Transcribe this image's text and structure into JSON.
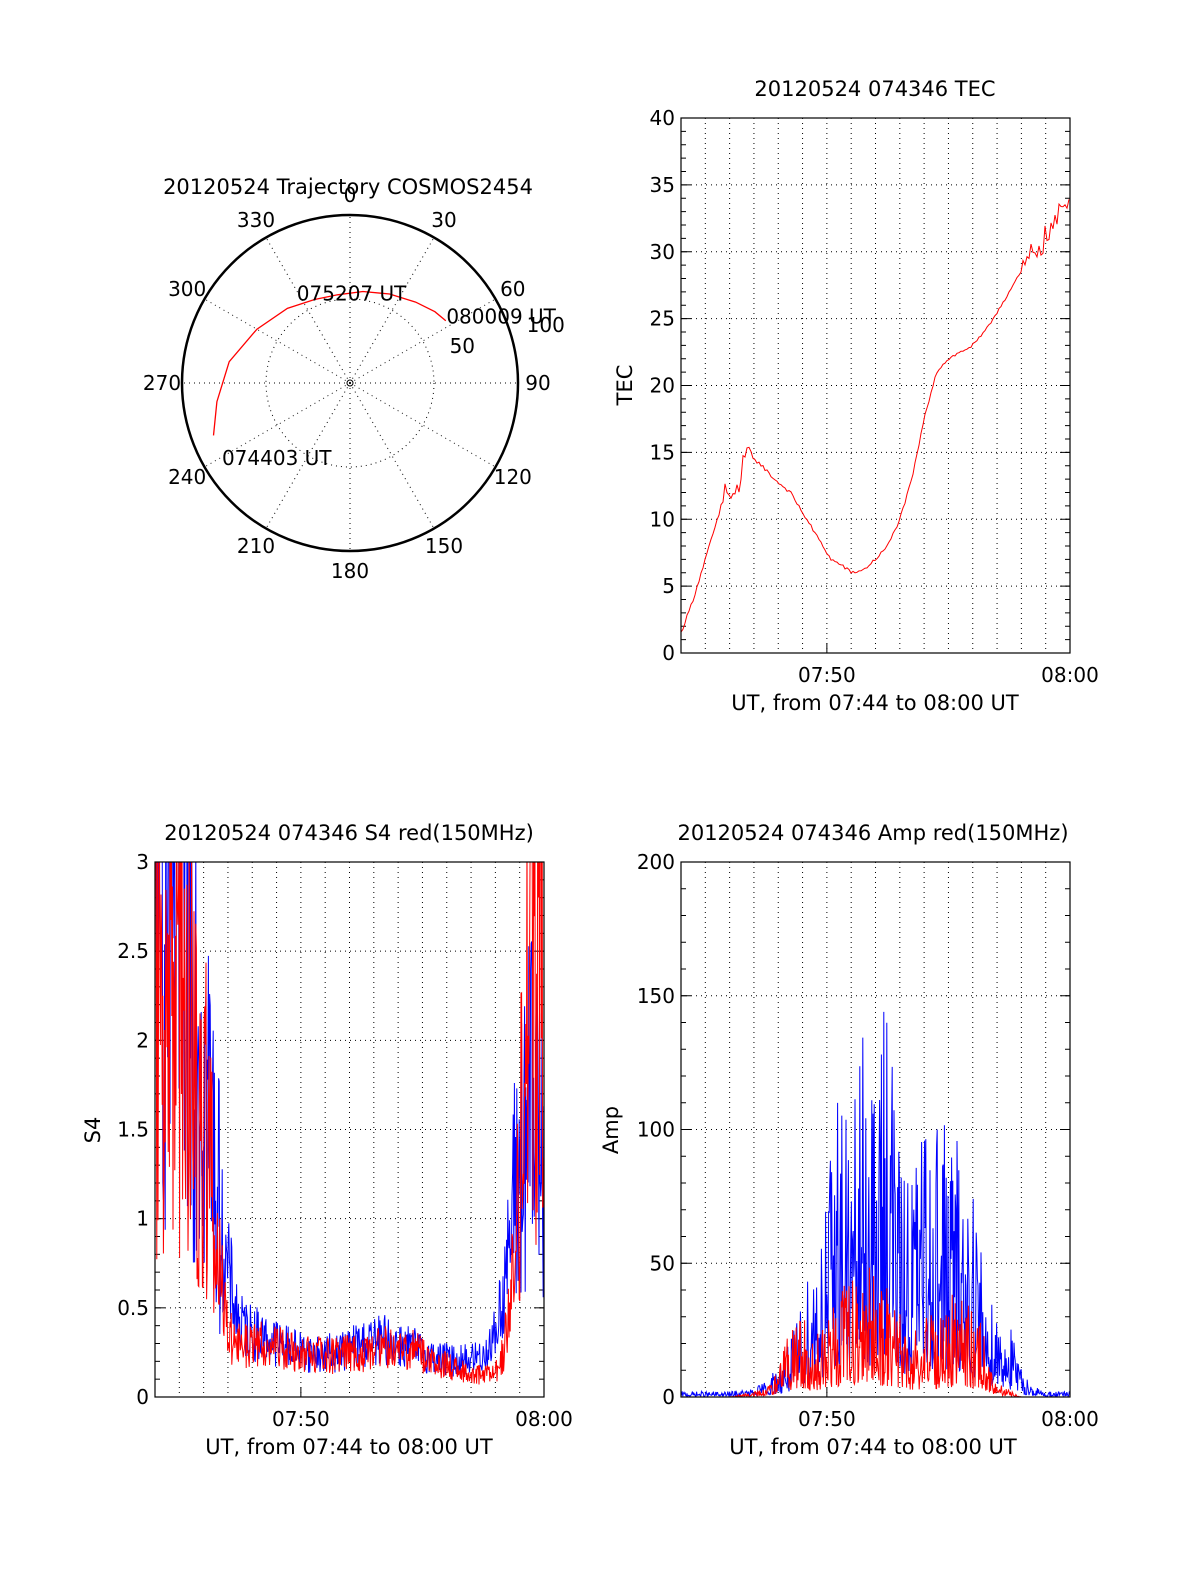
{
  "chart_data": [
    {
      "type": "polar",
      "title": "20120524 Trajectory COSMOS2454",
      "angle_labels": [
        "0",
        "30",
        "60",
        "90",
        "120",
        "150",
        "180",
        "210",
        "240",
        "270",
        "300",
        "330"
      ],
      "radius_labels": [
        "50",
        "100"
      ],
      "rlim": [
        0,
        100
      ],
      "grid": true,
      "series": [
        {
          "color": "#ff0000",
          "points": [
            [
              249,
              87
            ],
            [
              262,
              80
            ],
            [
              280,
              73
            ],
            [
              300,
              64
            ],
            [
              320,
              58
            ],
            [
              337,
              54
            ],
            [
              352,
              53
            ],
            [
              8,
              55
            ],
            [
              24,
              58
            ],
            [
              39,
              62
            ],
            [
              50,
              66
            ],
            [
              57,
              68
            ]
          ]
        }
      ],
      "annotations": [
        {
          "text": "080009 UT",
          "angle": 55,
          "radius": 70
        },
        {
          "text": "075207 UT",
          "angle": 1,
          "radius": 54
        },
        {
          "text": "074403 UT",
          "angle": 240,
          "radius": 88
        }
      ]
    },
    {
      "type": "line",
      "title": "20120524 074346 TEC",
      "xlabel": "UT, from 07:44 to 08:00 UT",
      "ylabel": "TEC",
      "xlim": [
        "07:44",
        "08:00"
      ],
      "ylim": [
        0,
        40
      ],
      "xticks": [
        "07:50",
        "08:00"
      ],
      "yticks": [
        "0",
        "5",
        "10",
        "15",
        "20",
        "25",
        "30",
        "35",
        "40"
      ],
      "grid": true,
      "series": [
        {
          "color": "#ff0000",
          "x": [
            "07:44:00",
            "07:44:30",
            "07:45:00",
            "07:45:30",
            "07:45:50",
            "07:46:10",
            "07:46:30",
            "07:46:45",
            "07:47:00",
            "07:47:20",
            "07:47:50",
            "07:48:30",
            "07:49:00",
            "07:49:40",
            "07:50:10",
            "07:50:40",
            "07:51:00",
            "07:51:30",
            "07:52:00",
            "07:52:30",
            "07:53:00",
            "07:53:30",
            "07:54:00",
            "07:54:30",
            "07:55:00",
            "07:55:30",
            "07:56:00",
            "07:56:30",
            "07:57:00",
            "07:57:30",
            "07:58:00",
            "07:58:30",
            "07:59:00",
            "07:59:30",
            "08:00:00"
          ],
          "values": [
            1.5,
            4,
            7,
            10,
            12.5,
            11,
            13.5,
            15.5,
            14.5,
            14,
            13,
            12,
            10.5,
            8.5,
            7,
            6.5,
            6,
            6.2,
            7,
            8,
            10,
            13,
            17.5,
            21,
            22,
            22.5,
            23,
            24,
            25.5,
            27,
            28.5,
            30,
            31,
            32.5,
            34
          ]
        }
      ]
    },
    {
      "type": "line",
      "title": "20120524 074346 S4 red(150MHz)",
      "xlabel": "UT, from 07:44 to 08:00 UT",
      "ylabel": "S4",
      "xlim": [
        "07:44",
        "08:00"
      ],
      "ylim": [
        0,
        3
      ],
      "xticks": [
        "07:50",
        "08:00"
      ],
      "yticks": [
        "0",
        "0.5",
        "1",
        "1.5",
        "2",
        "2.5",
        "3"
      ],
      "grid": true,
      "series": [
        {
          "color": "#0000ff",
          "x": [
            "07:44:00",
            "07:44:45",
            "07:45:30",
            "07:46:15",
            "07:46:50",
            "07:47:30",
            "07:48:30",
            "07:49:30",
            "07:50:30",
            "07:51:30",
            "07:52:30",
            "07:53:30",
            "07:54:30",
            "07:55:30",
            "07:56:30",
            "07:57:30",
            "07:58:00",
            "07:58:20",
            "07:58:40",
            "07:59:00",
            "07:59:20",
            "07:59:40",
            "08:00:00"
          ],
          "values": [
            3,
            2.8,
            2.6,
            1.6,
            0.8,
            0.4,
            0.33,
            0.28,
            0.24,
            0.25,
            0.3,
            0.32,
            0.28,
            0.22,
            0.2,
            0.23,
            0.35,
            0.6,
            0.95,
            1.3,
            1.5,
            1.6,
            1.7
          ]
        },
        {
          "color": "#ff0000",
          "x": [
            "07:44:00",
            "07:45:00",
            "07:46:00",
            "07:46:30",
            "07:47:00",
            "07:47:30",
            "07:48:30",
            "07:49:30",
            "07:50:30",
            "07:51:30",
            "07:52:30",
            "07:53:30",
            "07:54:30",
            "07:55:30",
            "07:56:30",
            "07:57:30",
            "07:58:00",
            "07:58:20",
            "07:58:40",
            "07:59:00",
            "07:59:20",
            "07:59:40",
            "08:00:00"
          ],
          "values": [
            2.5,
            2.2,
            1.7,
            0.9,
            0.35,
            0.28,
            0.3,
            0.26,
            0.24,
            0.23,
            0.25,
            0.28,
            0.27,
            0.2,
            0.15,
            0.12,
            0.13,
            0.25,
            0.6,
            1.2,
            2.2,
            2.8,
            3
          ]
        }
      ]
    },
    {
      "type": "line",
      "title": "20120524 074346 Amp red(150MHz)",
      "xlabel": "UT, from 07:44 to 08:00 UT",
      "ylabel": "Amp",
      "xlim": [
        "07:44",
        "08:00"
      ],
      "ylim": [
        0,
        200
      ],
      "xticks": [
        "07:50",
        "08:00"
      ],
      "yticks": [
        "0",
        "50",
        "100",
        "150",
        "200"
      ],
      "grid": true,
      "series": [
        {
          "color": "#0000ff",
          "x": [
            "07:44:00",
            "07:45:00",
            "07:46:00",
            "07:47:00",
            "07:47:30",
            "07:48:00",
            "07:48:30",
            "07:49:00",
            "07:49:30",
            "07:50:00",
            "07:50:30",
            "07:51:00",
            "07:51:30",
            "07:52:00",
            "07:52:30",
            "07:53:00",
            "07:53:30",
            "07:54:00",
            "07:54:30",
            "07:55:00",
            "07:55:30",
            "07:56:00",
            "07:56:30",
            "07:57:00",
            "07:57:30",
            "07:58:00",
            "07:58:30",
            "07:59:00",
            "08:00:00"
          ],
          "values": [
            2,
            2,
            2,
            3,
            6,
            12,
            20,
            35,
            55,
            75,
            120,
            95,
            130,
            105,
            172,
            80,
            90,
            100,
            105,
            98,
            90,
            80,
            45,
            35,
            28,
            10,
            4,
            2,
            2
          ]
        },
        {
          "color": "#ff0000",
          "x": [
            "07:44:00",
            "07:46:00",
            "07:47:30",
            "07:48:00",
            "07:48:30",
            "07:49:00",
            "07:49:30",
            "07:50:00",
            "07:50:30",
            "07:51:00",
            "07:51:30",
            "07:52:00",
            "07:52:30",
            "07:53:00",
            "07:53:30",
            "07:54:00",
            "07:54:30",
            "07:55:00",
            "07:55:30",
            "07:56:00",
            "07:56:30",
            "07:57:00",
            "07:58:00",
            "08:00:00"
          ],
          "values": [
            0,
            0,
            3,
            10,
            25,
            30,
            20,
            30,
            40,
            45,
            50,
            45,
            40,
            30,
            25,
            28,
            30,
            35,
            40,
            30,
            25,
            5,
            0,
            0
          ]
        }
      ]
    }
  ]
}
